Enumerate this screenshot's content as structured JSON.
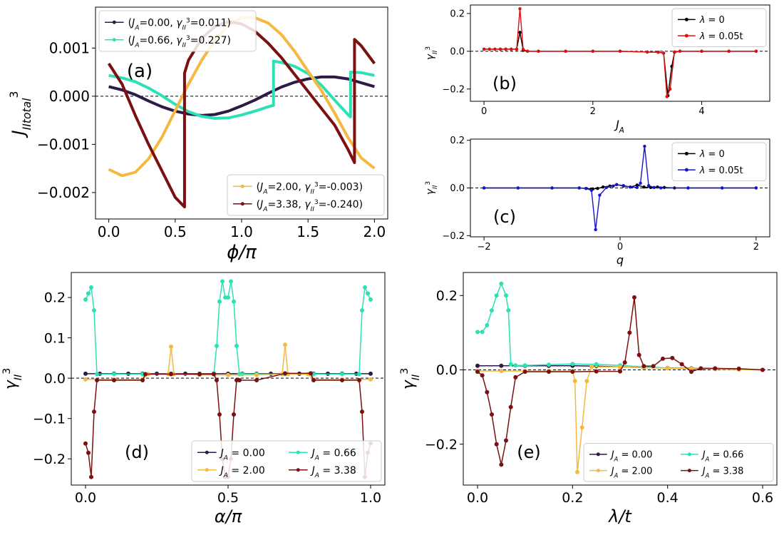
{
  "chart_data": [
    {
      "id": "a",
      "type": "line",
      "panel_label": "(a)",
      "xlabel": "ϕ/π",
      "ylabel": "J",
      "ylabel_sup": "3",
      "ylabel_sub": "II",
      "ylabel_subsub": "total",
      "xlim": [
        -0.1,
        2.1
      ],
      "ylim": [
        -0.00255,
        0.00185
      ],
      "xticks": [
        0.0,
        0.5,
        1.0,
        1.5,
        2.0
      ],
      "xtick_labels": [
        "0.0",
        "0.5",
        "1.0",
        "1.5",
        "2.0"
      ],
      "yticks": [
        -0.002,
        -0.001,
        0.0,
        0.001
      ],
      "ytick_labels": [
        "−0.002",
        "−0.001",
        "0.000",
        "0.001"
      ],
      "hline": 0,
      "series": [
        {
          "name": "(JA=0.00, γII3=0.011)",
          "label_text": "(J_A=0.00, γ_II^3=0.011)",
          "color": "#2e1a47",
          "x": [
            0,
            0.1,
            0.2,
            0.3,
            0.4,
            0.5,
            0.6,
            0.7,
            0.8,
            0.9,
            1.0,
            1.1,
            1.2,
            1.3,
            1.4,
            1.5,
            1.6,
            1.7,
            1.8,
            1.9,
            2.0
          ],
          "y": [
            0.0002,
            0.00013,
            3e-05,
            -0.0001,
            -0.00022,
            -0.00031,
            -0.00037,
            -0.0004,
            -0.00038,
            -0.00031,
            -0.0002,
            -8e-05,
            6e-05,
            0.00019,
            0.00029,
            0.00036,
            0.0004,
            0.0004,
            0.00036,
            0.00028,
            0.0002
          ]
        },
        {
          "name": "(JA=0.66, γII3=0.227)",
          "label_text": "(J_A=0.66, γ_II^3=0.227)",
          "color": "#2ee0b5",
          "x": [
            0,
            0.1,
            0.2,
            0.3,
            0.4,
            0.5,
            0.6,
            0.7,
            0.8,
            0.9,
            1.0,
            1.1,
            1.2,
            1.24,
            1.24,
            1.3,
            1.4,
            1.5,
            1.6,
            1.7,
            1.8,
            1.82,
            1.82,
            1.9,
            2.0
          ],
          "y": [
            0.00043,
            0.00038,
            0.0003,
            0.00017,
            1e-05,
            -0.00017,
            -0.00032,
            -0.00042,
            -0.00046,
            -0.00045,
            -0.00039,
            -0.00031,
            -0.00022,
            -0.00019,
            0.00073,
            0.0007,
            0.00062,
            0.00047,
            0.00023,
            -8e-05,
            -0.00038,
            -0.00043,
            0.0005,
            0.00049,
            0.00043
          ]
        },
        {
          "name": "(JA=2.00, γII3=-0.003)",
          "label_text": "(J_A=2.00, γ_II^3=-0.003)",
          "color": "#f5b942",
          "x": [
            0,
            0.1,
            0.2,
            0.3,
            0.4,
            0.5,
            0.6,
            0.7,
            0.8,
            0.9,
            1.0,
            1.1,
            1.2,
            1.3,
            1.4,
            1.5,
            1.6,
            1.7,
            1.8,
            1.9,
            2.0
          ],
          "y": [
            -0.00152,
            -0.00165,
            -0.00158,
            -0.0013,
            -0.00085,
            -0.0003,
            0.00025,
            0.00075,
            0.00117,
            0.00148,
            0.00163,
            0.00163,
            0.00152,
            0.00128,
            0.00093,
            0.00052,
            0.00012,
            -0.00035,
            -0.00085,
            -0.00128,
            -0.0015
          ]
        },
        {
          "name": "(JA=3.38, γII3=-0.240)",
          "label_text": "(J_A=3.38, γ_II^3=-0.240)",
          "color": "#7a1010",
          "x": [
            0,
            0.1,
            0.2,
            0.3,
            0.4,
            0.5,
            0.57,
            0.57,
            0.6,
            0.7,
            0.8,
            0.9,
            1.0,
            1.1,
            1.2,
            1.3,
            1.4,
            1.5,
            1.6,
            1.7,
            1.8,
            1.85,
            1.85,
            1.9,
            2.0
          ],
          "y": [
            0.00068,
            0.00025,
            -0.0004,
            -0.001,
            -0.00155,
            -0.0021,
            -0.0023,
            0.00048,
            0.00075,
            0.0012,
            0.00145,
            0.00155,
            0.0015,
            0.00135,
            0.0011,
            0.0008,
            0.00045,
            0.0001,
            -0.00025,
            -0.0006,
            -0.0011,
            -0.00138,
            0.00118,
            0.00105,
            0.00068
          ]
        }
      ],
      "legends": [
        {
          "position": "upper-left",
          "entries": [
            0,
            1
          ]
        },
        {
          "position": "lower-right",
          "entries": [
            2,
            3
          ]
        }
      ]
    },
    {
      "id": "b",
      "type": "line",
      "panel_label": "(b)",
      "xlabel": "J",
      "xlabel_sub": "A",
      "ylabel": "γ",
      "ylabel_sup": "3",
      "ylabel_sub": "II",
      "xlim": [
        -0.25,
        5.25
      ],
      "ylim": [
        -0.265,
        0.245
      ],
      "xticks": [
        0,
        2,
        4
      ],
      "xtick_labels": [
        "0",
        "2",
        "4"
      ],
      "yticks": [
        -0.2,
        0.0,
        0.2
      ],
      "ytick_labels": [
        "−0.2",
        "0.0",
        "0.2"
      ],
      "hline": 0,
      "series": [
        {
          "name": "λ = 0",
          "color": "#000000",
          "x": [
            0,
            0.1,
            0.2,
            0.3,
            0.4,
            0.5,
            0.6,
            0.66,
            0.72,
            0.8,
            1.0,
            1.5,
            2.0,
            2.5,
            3.0,
            3.2,
            3.3,
            3.38,
            3.45,
            3.5,
            3.6,
            4.0,
            4.5,
            5.0
          ],
          "y": [
            0.011,
            0.011,
            0.011,
            0.011,
            0.011,
            0.011,
            0.011,
            0.1,
            0.005,
            0.0,
            0.0,
            0.0,
            0.0,
            0.0,
            -0.004,
            -0.005,
            -0.01,
            -0.235,
            -0.08,
            -0.005,
            0.0,
            0.0,
            0.0,
            0.0
          ]
        },
        {
          "name": "λ = 0.05t",
          "color": "#e01010",
          "x": [
            0,
            0.1,
            0.2,
            0.3,
            0.4,
            0.5,
            0.6,
            0.66,
            0.72,
            0.8,
            1.0,
            1.5,
            2.0,
            2.5,
            3.0,
            3.2,
            3.3,
            3.36,
            3.42,
            3.5,
            3.6,
            4.0,
            4.5,
            5.0
          ],
          "y": [
            0.011,
            0.011,
            0.011,
            0.011,
            0.011,
            0.011,
            0.011,
            0.225,
            0.01,
            0.0,
            0.0,
            0.0,
            0.0,
            0.0,
            -0.004,
            -0.005,
            -0.01,
            -0.24,
            -0.2,
            -0.003,
            0.0,
            0.0,
            0.0,
            0.0
          ]
        }
      ],
      "legends": [
        {
          "position": "upper-right",
          "entries": [
            0,
            1
          ]
        }
      ]
    },
    {
      "id": "c",
      "type": "line",
      "panel_label": "(c)",
      "xlabel": "q",
      "ylabel": "γ",
      "ylabel_sup": "3",
      "ylabel_sub": "II",
      "xlim": [
        -2.2,
        2.2
      ],
      "ylim": [
        -0.205,
        0.205
      ],
      "xticks": [
        -2,
        0,
        2
      ],
      "xtick_labels": [
        "−2",
        "0",
        "2"
      ],
      "yticks": [
        -0.2,
        0.0,
        0.2
      ],
      "ytick_labels": [
        "−0.2",
        "0.0",
        "0.2"
      ],
      "hline": 0,
      "series": [
        {
          "name": "λ = 0",
          "color": "#000000",
          "x": [
            -2,
            -1.5,
            -1.0,
            -0.6,
            -0.5,
            -0.4,
            -0.33,
            -0.25,
            -0.15,
            -0.05,
            0.05,
            0.15,
            0.25,
            0.35,
            0.45,
            0.55,
            0.65,
            0.8,
            1.0,
            1.5,
            2.0
          ],
          "y": [
            0,
            0,
            0,
            0,
            -0.002,
            -0.004,
            -0.002,
            0.004,
            0.008,
            0.014,
            0.008,
            0.004,
            0.012,
            0.004,
            0.002,
            0.004,
            0.002,
            0,
            0,
            0,
            0
          ]
        },
        {
          "name": "λ = 0.05t",
          "color": "#1515d0",
          "x": [
            -2,
            -1.5,
            -1.0,
            -0.6,
            -0.5,
            -0.42,
            -0.36,
            -0.3,
            -0.2,
            -0.1,
            -0.05,
            0.05,
            0.15,
            0.25,
            0.3,
            0.36,
            0.42,
            0.5,
            0.6,
            1.0,
            1.5,
            2.0
          ],
          "y": [
            0,
            0,
            0,
            0,
            -0.002,
            -0.01,
            -0.175,
            -0.03,
            0.002,
            0.008,
            0.014,
            0.01,
            0.004,
            0.002,
            0.02,
            0.175,
            0.01,
            0.002,
            0.0,
            0,
            0,
            0
          ]
        }
      ],
      "legends": [
        {
          "position": "upper-right",
          "entries": [
            0,
            1
          ]
        }
      ]
    },
    {
      "id": "d",
      "type": "line",
      "panel_label": "(d)",
      "xlabel": "α/π",
      "ylabel": "γ",
      "ylabel_sup": "3",
      "ylabel_sub": "II",
      "xlim": [
        -0.05,
        1.05
      ],
      "ylim": [
        -0.265,
        0.262
      ],
      "xticks": [
        0.0,
        0.5,
        1.0
      ],
      "xtick_labels": [
        "0.0",
        "0.5",
        "1.0"
      ],
      "yticks": [
        -0.2,
        -0.1,
        0.0,
        0.1,
        0.2
      ],
      "ytick_labels": [
        "−0.2",
        "−0.1",
        "0.0",
        "0.1",
        "0.2"
      ],
      "hline": 0,
      "series": [
        {
          "name": "JA = 0.00",
          "color": "#2e1a47",
          "x": [
            0,
            0.05,
            0.1,
            0.15,
            0.2,
            0.25,
            0.3,
            0.35,
            0.4,
            0.45,
            0.5,
            0.55,
            0.6,
            0.65,
            0.7,
            0.75,
            0.8,
            0.85,
            0.9,
            0.95,
            1.0
          ],
          "y": [
            0.011,
            0.011,
            0.011,
            0.011,
            0.011,
            0.011,
            0.011,
            0.011,
            0.011,
            0.011,
            0.011,
            0.011,
            0.011,
            0.011,
            0.011,
            0.011,
            0.011,
            0.011,
            0.011,
            0.011,
            0.011
          ]
        },
        {
          "name": "JA = 0.66",
          "color": "#2ee0b5",
          "x": [
            0,
            0.01,
            0.02,
            0.03,
            0.04,
            0.1,
            0.2,
            0.3,
            0.4,
            0.45,
            0.46,
            0.47,
            0.48,
            0.49,
            0.5,
            0.51,
            0.52,
            0.53,
            0.54,
            0.55,
            0.6,
            0.7,
            0.8,
            0.9,
            0.96,
            0.97,
            0.98,
            0.99,
            1.0
          ],
          "y": [
            0.195,
            0.21,
            0.225,
            0.168,
            0.01,
            0.01,
            0.01,
            0.01,
            0.01,
            0.01,
            0.08,
            0.19,
            0.24,
            0.2,
            0.2,
            0.24,
            0.19,
            0.08,
            0.01,
            0.01,
            0.01,
            0.01,
            0.01,
            0.01,
            0.01,
            0.168,
            0.225,
            0.21,
            0.195
          ]
        },
        {
          "name": "JA = 2.00",
          "color": "#f5b942",
          "x": [
            0,
            0.1,
            0.2,
            0.22,
            0.29,
            0.3,
            0.31,
            0.4,
            0.5,
            0.6,
            0.69,
            0.7,
            0.71,
            0.78,
            0.8,
            0.9,
            1.0
          ],
          "y": [
            -0.003,
            -0.003,
            -0.003,
            0.01,
            0.01,
            0.078,
            0.01,
            0.008,
            0.008,
            0.008,
            0.01,
            0.083,
            0.01,
            0.01,
            -0.003,
            -0.003,
            -0.003
          ]
        },
        {
          "name": "JA = 3.38",
          "color": "#7a1010",
          "x": [
            0,
            0.01,
            0.02,
            0.03,
            0.04,
            0.1,
            0.2,
            0.21,
            0.3,
            0.4,
            0.45,
            0.46,
            0.47,
            0.48,
            0.49,
            0.5,
            0.51,
            0.52,
            0.53,
            0.54,
            0.6,
            0.7,
            0.79,
            0.8,
            0.9,
            0.96,
            0.97,
            0.98,
            0.99,
            1.0
          ],
          "y": [
            -0.162,
            -0.185,
            -0.245,
            -0.083,
            -0.005,
            -0.005,
            -0.005,
            0.01,
            0.01,
            0.01,
            0.01,
            -0.005,
            -0.09,
            -0.2,
            -0.245,
            -0.245,
            -0.2,
            -0.09,
            -0.005,
            -0.005,
            -0.005,
            0.012,
            0.012,
            -0.005,
            -0.005,
            -0.005,
            -0.083,
            -0.245,
            -0.185,
            -0.162
          ]
        }
      ],
      "legends": [
        {
          "position": "lower-right",
          "columns": 2,
          "entries": [
            0,
            1,
            2,
            3
          ]
        }
      ]
    },
    {
      "id": "e",
      "type": "line",
      "panel_label": "(e)",
      "xlabel": "λ/t",
      "ylabel": "γ",
      "ylabel_sup": "3",
      "ylabel_sub": "II",
      "xlim": [
        -0.03,
        0.63
      ],
      "ylim": [
        -0.31,
        0.262
      ],
      "xticks": [
        0.0,
        0.2,
        0.4,
        0.6
      ],
      "xtick_labels": [
        "0.0",
        "0.2",
        "0.4",
        "0.6"
      ],
      "yticks": [
        -0.2,
        0.0,
        0.2
      ],
      "ytick_labels": [
        "−0.2",
        "0.0",
        "0.2"
      ],
      "hline": 0,
      "series": [
        {
          "name": "JA = 0.00",
          "color": "#2e1a47",
          "x": [
            0,
            0.05,
            0.1,
            0.15,
            0.2,
            0.25,
            0.3,
            0.35,
            0.4,
            0.45,
            0.5,
            0.55,
            0.6
          ],
          "y": [
            0.011,
            0.011,
            0.011,
            0.011,
            0.011,
            0.01,
            0.008,
            0.006,
            0.005,
            0.004,
            0.003,
            0.002,
            0.0
          ]
        },
        {
          "name": "JA = 0.66",
          "color": "#2ee0b5",
          "x": [
            0,
            0.01,
            0.02,
            0.03,
            0.04,
            0.05,
            0.06,
            0.065,
            0.07,
            0.08,
            0.1,
            0.15,
            0.2,
            0.25,
            0.3,
            0.35,
            0.4,
            0.45,
            0.5,
            0.55,
            0.6
          ],
          "y": [
            0.102,
            0.102,
            0.12,
            0.16,
            0.2,
            0.232,
            0.2,
            0.16,
            0.015,
            0.012,
            0.012,
            0.014,
            0.016,
            0.015,
            0.012,
            0.008,
            0.005,
            0.003,
            0.002,
            0.001,
            0.0
          ]
        },
        {
          "name": "JA = 2.00",
          "color": "#f5b942",
          "x": [
            0,
            0.05,
            0.1,
            0.15,
            0.2,
            0.205,
            0.21,
            0.22,
            0.23,
            0.24,
            0.3,
            0.35,
            0.4,
            0.45,
            0.5,
            0.55,
            0.6
          ],
          "y": [
            -0.003,
            -0.003,
            -0.003,
            -0.003,
            -0.003,
            -0.03,
            -0.275,
            -0.155,
            -0.03,
            0.008,
            0.008,
            0.006,
            0.004,
            0.003,
            0.002,
            0.001,
            0.0
          ]
        },
        {
          "name": "JA = 3.38",
          "color": "#7a1010",
          "x": [
            0,
            0.01,
            0.02,
            0.03,
            0.04,
            0.05,
            0.06,
            0.07,
            0.08,
            0.1,
            0.15,
            0.2,
            0.25,
            0.3,
            0.31,
            0.32,
            0.33,
            0.34,
            0.35,
            0.37,
            0.39,
            0.41,
            0.43,
            0.45,
            0.47,
            0.5,
            0.55,
            0.6
          ],
          "y": [
            -0.005,
            -0.015,
            -0.06,
            -0.12,
            -0.2,
            -0.255,
            -0.19,
            -0.1,
            -0.02,
            -0.005,
            -0.005,
            -0.005,
            -0.004,
            -0.004,
            0.02,
            0.1,
            0.195,
            0.04,
            0.01,
            0.01,
            0.03,
            0.032,
            0.015,
            -0.005,
            0.004,
            0.004,
            0.003,
            0.0
          ]
        }
      ],
      "legends": [
        {
          "position": "lower-right",
          "columns": 2,
          "entries": [
            0,
            1,
            2,
            3
          ]
        }
      ]
    }
  ]
}
